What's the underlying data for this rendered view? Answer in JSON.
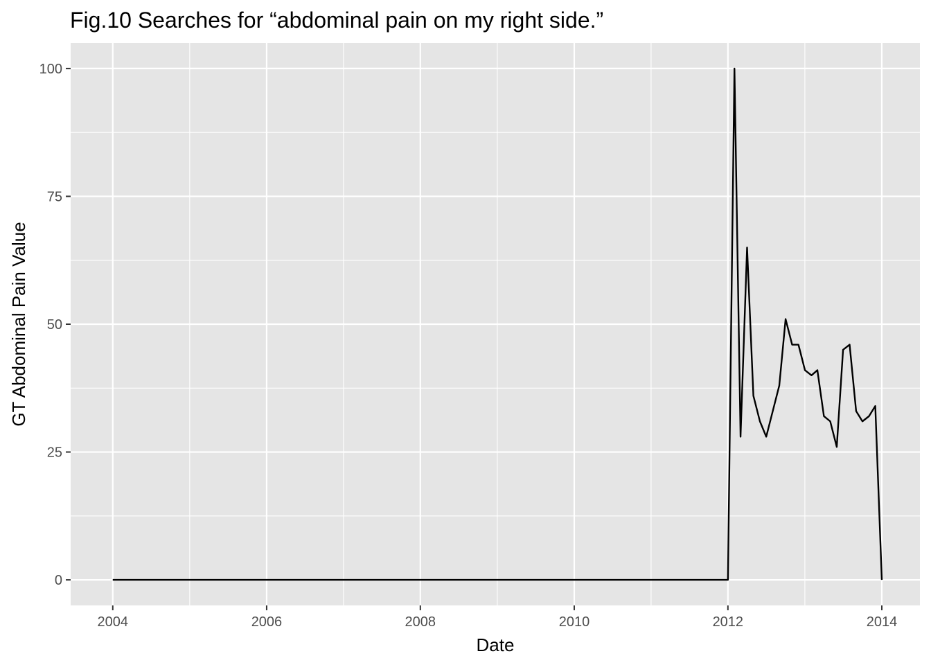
{
  "chart_data": {
    "type": "line",
    "title": "Fig.10 Searches for “abdominal pain on my right side.”",
    "xlabel": "Date",
    "ylabel": "GT Abdominal Pain Value",
    "x_axis_type": "date",
    "xlim": [
      "2003-06-15",
      "2014-07-01"
    ],
    "ylim": [
      -5,
      105
    ],
    "x_ticks": [
      "2004",
      "2006",
      "2008",
      "2010",
      "2012",
      "2014"
    ],
    "x_tick_dates": [
      "2004-01-01",
      "2006-01-01",
      "2008-01-01",
      "2010-01-01",
      "2012-01-01",
      "2014-01-01"
    ],
    "y_ticks": [
      "0",
      "25",
      "50",
      "75",
      "100"
    ],
    "y_tick_values": [
      0,
      25,
      50,
      75,
      100
    ],
    "grid": true,
    "background": "#e5e5e5",
    "grid_color": "#ffffff",
    "line_color": "#000000",
    "series": [
      {
        "x": [
          "2004-01-01",
          "2012-01-01",
          "2012-02-01",
          "2012-03-01",
          "2012-04-01",
          "2012-05-01",
          "2012-06-01",
          "2012-07-01",
          "2012-08-01",
          "2012-09-01",
          "2012-10-01",
          "2012-11-01",
          "2012-12-01",
          "2013-01-01",
          "2013-02-01",
          "2013-03-01",
          "2013-04-01",
          "2013-05-01",
          "2013-06-01",
          "2013-07-01",
          "2013-08-01",
          "2013-09-01",
          "2013-10-01",
          "2013-11-01",
          "2013-12-01",
          "2014-01-01"
        ],
        "values": [
          0,
          0,
          100,
          28,
          65,
          36,
          31,
          28,
          33,
          38,
          51,
          46,
          46,
          41,
          40,
          41,
          32,
          31,
          26,
          45,
          46,
          33,
          31,
          32,
          34,
          0
        ]
      }
    ]
  }
}
